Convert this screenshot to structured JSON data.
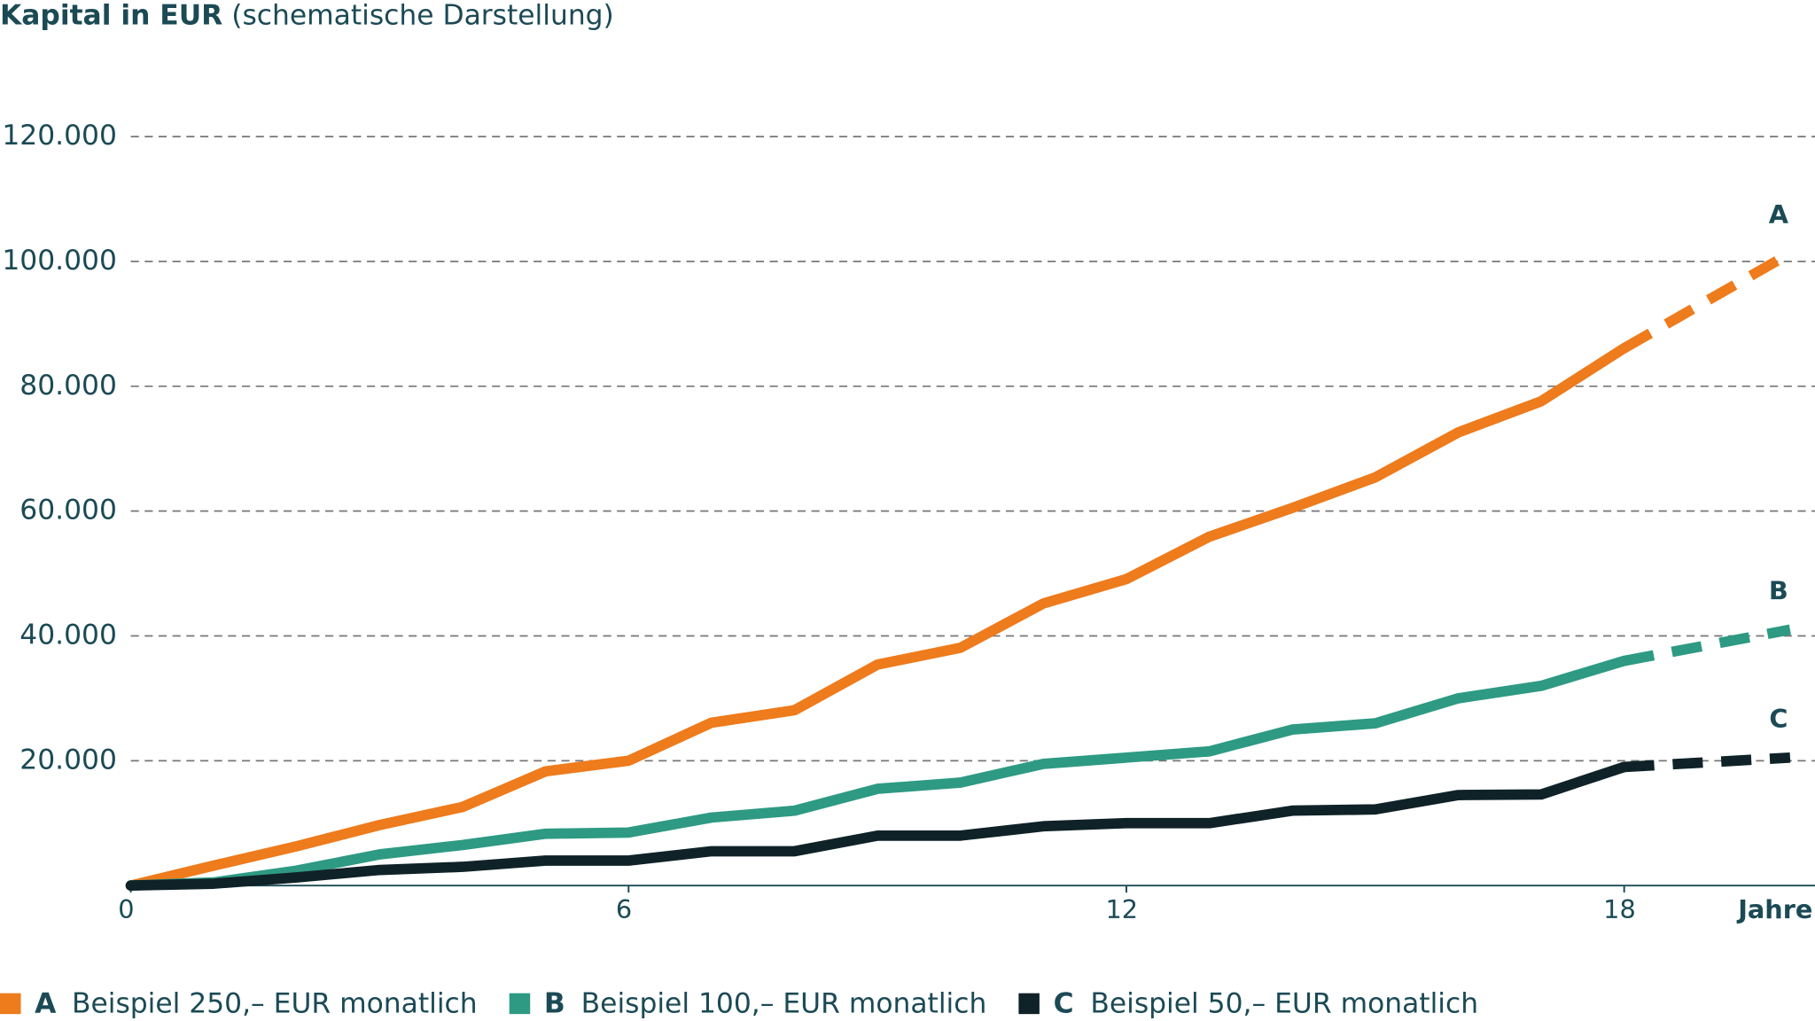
{
  "chart_data": {
    "type": "line",
    "title": "Kapital in EUR",
    "subtitle": "(schematische Darstellung)",
    "x_label": "Jahre",
    "x": [
      0,
      1,
      2,
      3,
      4,
      5,
      6,
      7,
      8,
      9,
      10,
      11,
      12,
      13,
      14,
      15,
      16,
      17,
      18,
      20
    ],
    "projection_start": 18,
    "series": [
      {
        "label": "A",
        "name": "Beispiel 250,– EUR monatlich",
        "color": "#ee7b1c",
        "values": [
          0,
          3200,
          6300,
          9700,
          12600,
          18300,
          20000,
          26100,
          28100,
          35400,
          38100,
          45200,
          49100,
          55900,
          60500,
          65400,
          72600,
          77600,
          86100,
          101300
        ]
      },
      {
        "label": "B",
        "name": "Beispiel 100,– EUR monatlich",
        "color": "#2e9a83",
        "values": [
          0,
          500,
          2400,
          5000,
          6500,
          8300,
          8500,
          10900,
          12000,
          15500,
          16500,
          19500,
          20500,
          21500,
          25000,
          26000,
          30000,
          32000,
          36000,
          41000
        ]
      },
      {
        "label": "C",
        "name": "Beispiel 50,– EUR monatlich",
        "color": "#0f2228",
        "values": [
          0,
          300,
          1300,
          2500,
          3000,
          4000,
          4000,
          5500,
          5500,
          8000,
          8000,
          9500,
          10000,
          10000,
          12000,
          12200,
          14500,
          14600,
          19000,
          20500
        ]
      }
    ],
    "xlim": [
      0,
      20.3
    ],
    "xticks": [
      0,
      6,
      12,
      18
    ],
    "ylim": [
      0,
      120000
    ],
    "yticks": [
      {
        "value": 20000,
        "label": "20.000"
      },
      {
        "value": 40000,
        "label": "40.000"
      },
      {
        "value": 60000,
        "label": "60.000"
      },
      {
        "value": 80000,
        "label": "80.000"
      },
      {
        "value": 100000,
        "label": "100.000"
      },
      {
        "value": 120000,
        "label": "120.000"
      }
    ],
    "grid": true
  }
}
